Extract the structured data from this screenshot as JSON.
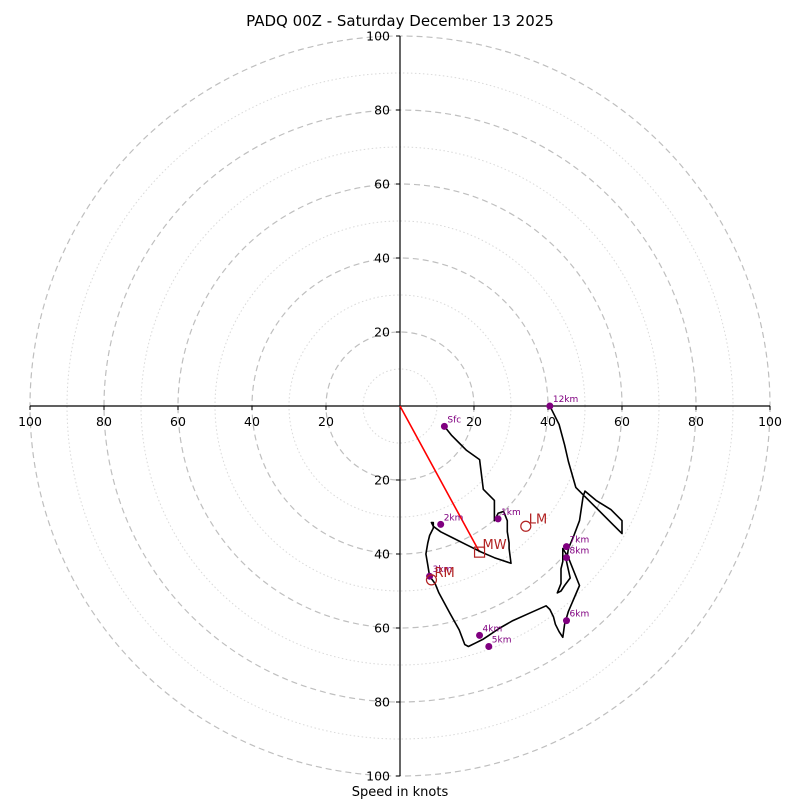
{
  "chart_data": {
    "type": "hodograph",
    "title": "PADQ 00Z - Saturday December 13 2025",
    "xlabel": "Speed in knots",
    "axis_range": [
      -100,
      100
    ],
    "ring_major_step": 20,
    "ring_minor_step": 10,
    "tick_labels": {
      "x_left": [
        "100",
        "80",
        "60",
        "40",
        "20"
      ],
      "x_right": [
        "20",
        "40",
        "60",
        "80",
        "100"
      ],
      "y_top": [
        "100",
        "80",
        "60",
        "40",
        "20"
      ],
      "y_bottom": [
        "20",
        "40",
        "60",
        "80",
        "100"
      ]
    },
    "colors": {
      "trace": "#000000",
      "height_marker": "#800080",
      "mean_wind_vector": "#ff0000",
      "motion_marker": "#b22222",
      "major_ring": "#bfbfbf",
      "minor_ring": "#d9d9d9"
    },
    "trace": [
      [
        12,
        -5.5
      ],
      [
        14,
        -8
      ],
      [
        16,
        -10
      ],
      [
        18,
        -12
      ],
      [
        21.5,
        -14.5
      ],
      [
        22.5,
        -22.5
      ],
      [
        25.5,
        -25.5
      ],
      [
        25.5,
        -31
      ],
      [
        26.5,
        -29
      ],
      [
        28,
        -28.5
      ],
      [
        29,
        -31
      ],
      [
        29,
        -34
      ],
      [
        29.5,
        -37
      ],
      [
        29.5,
        -38.5
      ],
      [
        30,
        -42.5
      ],
      [
        25.5,
        -41
      ],
      [
        22,
        -39.5
      ],
      [
        18,
        -37.5
      ],
      [
        14,
        -35.5
      ],
      [
        11,
        -34
      ],
      [
        9,
        -32.5
      ],
      [
        8.5,
        -31.5
      ],
      [
        9,
        -31.5
      ],
      [
        9,
        -33
      ],
      [
        8,
        -35
      ],
      [
        7.5,
        -37
      ],
      [
        7,
        -40
      ],
      [
        7.5,
        -43
      ],
      [
        8,
        -46
      ],
      [
        9.5,
        -48
      ],
      [
        10.5,
        -50.5
      ],
      [
        13.5,
        -56
      ],
      [
        16,
        -60.5
      ],
      [
        17.5,
        -64.5
      ],
      [
        18.5,
        -65
      ],
      [
        20.5,
        -64
      ],
      [
        22.5,
        -63
      ],
      [
        24,
        -62
      ],
      [
        27,
        -60
      ],
      [
        30.5,
        -58
      ],
      [
        35,
        -56
      ],
      [
        39.5,
        -54
      ],
      [
        40.5,
        -55
      ],
      [
        41.5,
        -57
      ],
      [
        42,
        -59
      ],
      [
        43,
        -61
      ],
      [
        44,
        -62.5
      ],
      [
        44.5,
        -59
      ],
      [
        45.5,
        -55.5
      ],
      [
        48.5,
        -48.5
      ],
      [
        45.5,
        -41
      ],
      [
        44,
        -38.5
      ],
      [
        44,
        -40
      ],
      [
        44,
        -42
      ],
      [
        43.5,
        -44
      ],
      [
        43.5,
        -46
      ],
      [
        43.5,
        -48
      ],
      [
        42.5,
        -50.5
      ],
      [
        43.5,
        -50
      ],
      [
        44.5,
        -48.5
      ],
      [
        46,
        -46.5
      ],
      [
        45,
        -42
      ],
      [
        45.5,
        -38.5
      ],
      [
        47,
        -35
      ],
      [
        48.5,
        -31
      ],
      [
        49.5,
        -24.5
      ],
      [
        50,
        -23
      ],
      [
        53,
        -25.5
      ],
      [
        57,
        -28
      ],
      [
        60,
        -31
      ],
      [
        60,
        -34.5
      ],
      [
        57.5,
        -32
      ],
      [
        52.5,
        -27
      ],
      [
        47.5,
        -22
      ],
      [
        45.5,
        -15
      ],
      [
        44.5,
        -10.5
      ],
      [
        43,
        -5
      ],
      [
        41,
        -1
      ],
      [
        40.5,
        0
      ]
    ],
    "height_markers": [
      {
        "label": "Sfc",
        "u": 12,
        "v": -5.5
      },
      {
        "label": "1km",
        "u": 26.5,
        "v": -30.5
      },
      {
        "label": "2km",
        "u": 11,
        "v": -32
      },
      {
        "label": "3km",
        "u": 8,
        "v": -46
      },
      {
        "label": "4km",
        "u": 21.5,
        "v": -62
      },
      {
        "label": "5km",
        "u": 24,
        "v": -65
      },
      {
        "label": "6km",
        "u": 45,
        "v": -58
      },
      {
        "label": "7km",
        "u": 45,
        "v": -38
      },
      {
        "label": "8km",
        "u": 45,
        "v": -41
      },
      {
        "label": "12km",
        "u": 40.5,
        "v": 0
      }
    ],
    "storm_motion": [
      {
        "label": "LM",
        "u": 34,
        "v": -32.5,
        "shape": "circle"
      },
      {
        "label": "MW",
        "u": 21.5,
        "v": -39.5,
        "shape": "square"
      },
      {
        "label": "RM",
        "u": 8.5,
        "v": -47,
        "shape": "circle"
      }
    ],
    "mean_wind_vector": {
      "from": [
        0,
        0
      ],
      "to": [
        21.5,
        -39.5
      ]
    }
  }
}
